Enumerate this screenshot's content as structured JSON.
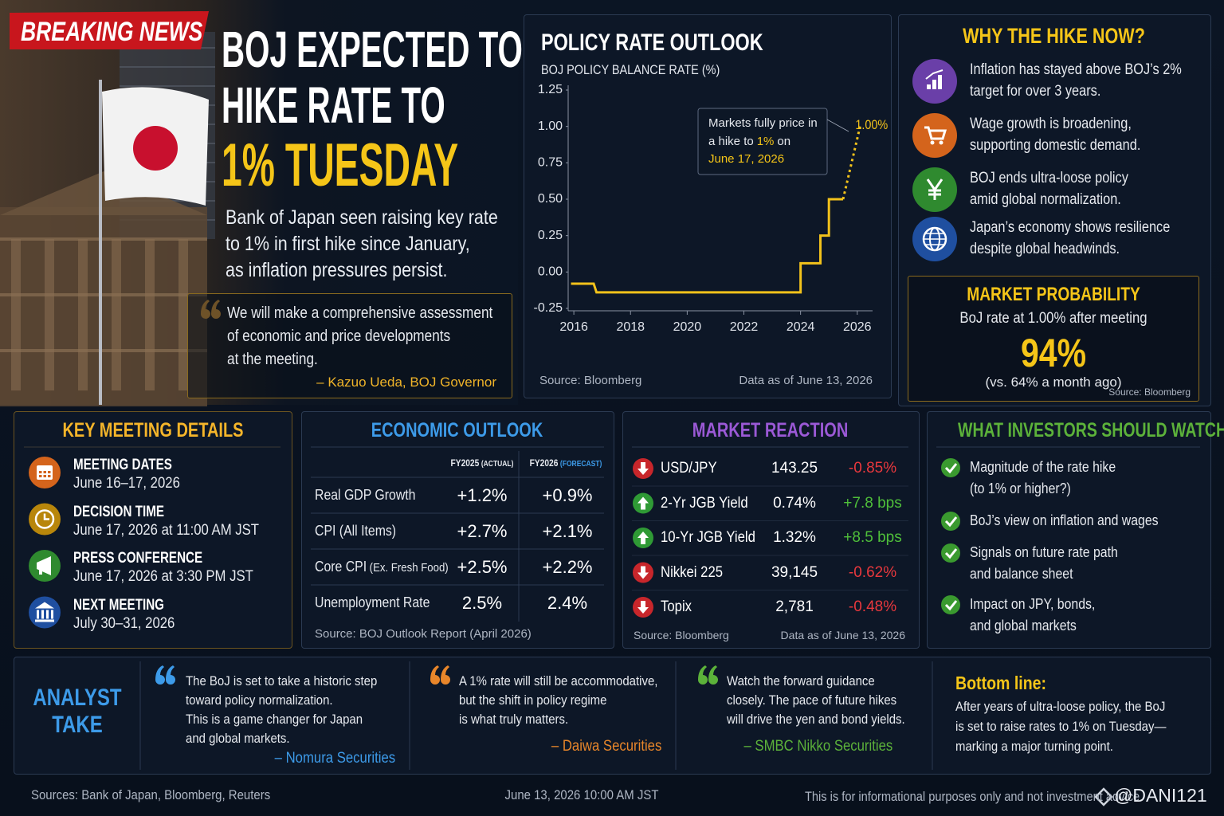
{
  "header": {
    "badge": "BREAKING NEWS",
    "title_lines": [
      "BOJ EXPECTED TO",
      "HIKE RATE TO",
      "1% TUESDAY"
    ],
    "subtitle_lines": [
      "Bank of Japan seen raising key rate",
      "to 1% in first hike since January,",
      "as inflation pressures persist."
    ],
    "quote": {
      "lines": [
        "We will make a comprehensive assessment",
        "of economic and price developments",
        "at the meeting."
      ],
      "attribution": "– Kazuo Ueda, BOJ Governor"
    }
  },
  "chart_data": {
    "type": "line",
    "title": "POLICY RATE OUTLOOK",
    "y_label": "BOJ POLICY BALANCE RATE (%)",
    "xlim": [
      2015.8,
      2026.4
    ],
    "xticks": [
      2016,
      2018,
      2020,
      2022,
      2024,
      2026
    ],
    "ylim": [
      -0.25,
      1.25
    ],
    "yticks": [
      {
        "value": 1.25,
        "label": "1.25"
      },
      {
        "value": 1,
        "label": "1.00"
      },
      {
        "value": 0.75,
        "label": "0.75"
      },
      {
        "value": 0.5,
        "label": "0.50"
      },
      0.25,
      {
        "value": 0,
        "label": "0.00"
      },
      -0.25
    ],
    "grid": false,
    "series": [
      {
        "color": "#f2c21b",
        "line_style": "solid",
        "x": [
          2015.9,
          2016.7,
          2016.8,
          2024.0,
          2024.0,
          2024.7,
          2024.7,
          2025.0,
          2025.0,
          2025.5
        ],
        "values": [
          -0.08,
          -0.08,
          -0.14,
          -0.14,
          0.06,
          0.06,
          0.25,
          0.25,
          0.5,
          0.5
        ]
      },
      {
        "color": "#f2c21b",
        "line_style": "dotted",
        "x": [
          2025.5,
          2026.1
        ],
        "values": [
          0.5,
          1.0
        ],
        "value_labels": [
          null,
          "1.00%"
        ]
      }
    ],
    "annotation": {
      "line1": "Markets fully price in",
      "line2_start": "a hike to",
      "line2_highlight": "1%",
      "line2_end": "on",
      "line3": "June 17, 2026"
    },
    "source": "Source: Bloomberg",
    "as_of": "Data as of June 13, 2026"
  },
  "why": {
    "title": "WHY THE HIKE NOW?",
    "items": [
      [
        "Inflation has stayed above BOJ’s 2%",
        "target for over 3 years."
      ],
      [
        "Wage growth is broadening,",
        "supporting domestic demand."
      ],
      [
        "BOJ ends ultra-loose policy",
        "amid global normalization."
      ],
      [
        "Japan’s economy shows resilience",
        "despite global headwinds."
      ]
    ]
  },
  "probability": {
    "title": "MARKET PROBABILITY",
    "subtitle": "BoJ rate at 1.00% after meeting",
    "value": "94%",
    "note": "(vs. 64% a month ago)",
    "source": "Source: Bloomberg"
  },
  "meeting": {
    "title": "KEY MEETING DETAILS",
    "items": [
      {
        "label": "MEETING DATES",
        "value": "June 16–17, 2026"
      },
      {
        "label": "DECISION TIME",
        "value": "June 17, 2026 at 11:00 AM JST"
      },
      {
        "label": "PRESS CONFERENCE",
        "value": "June 17, 2026 at 3:30 PM JST"
      },
      {
        "label": "NEXT MEETING",
        "value": "July 30–31, 2026"
      }
    ]
  },
  "outlook": {
    "title": "ECONOMIC OUTLOOK",
    "headers": [
      {
        "year": "FY2025",
        "kind": "(ACTUAL)"
      },
      {
        "year": "FY2026",
        "kind": "(FORECAST)"
      }
    ],
    "rows": [
      {
        "label": "Real GDP Growth",
        "values": [
          "+1.2%",
          "+0.9%"
        ]
      },
      {
        "label": "CPI (All Items)",
        "values": [
          "+2.7%",
          "+2.1%"
        ]
      },
      {
        "label": "Core CPI",
        "note": "(Ex. Fresh Food)",
        "values": [
          "+2.5%",
          "+2.2%"
        ]
      },
      {
        "label": "Unemployment Rate",
        "values": [
          "2.5%",
          "2.4%"
        ]
      }
    ],
    "source": "Source: BOJ Outlook Report (April 2026)"
  },
  "reaction": {
    "title": "MARKET REACTION",
    "rows": [
      {
        "name": "USD/JPY",
        "level": "143.25",
        "change": "-0.85%"
      },
      {
        "name": "2-Yr JGB Yield",
        "level": "0.74%",
        "change": "+7.8 bps"
      },
      {
        "name": "10-Yr JGB Yield",
        "level": "1.32%",
        "change": "+8.5 bps"
      },
      {
        "name": "Nikkei 225",
        "level": "39,145",
        "change": "-0.62%"
      },
      {
        "name": "Topix",
        "level": "2,781",
        "change": "-0.48%"
      }
    ],
    "source": "Source: Bloomberg",
    "as_of": "Data as of June 13, 2026"
  },
  "watch": {
    "title": "WHAT INVESTORS SHOULD WATCH",
    "items": [
      [
        "Magnitude of the rate hike",
        "(to 1% or higher?)"
      ],
      [
        "BoJ’s view on inflation and wages"
      ],
      [
        "Signals on future rate path",
        "and balance sheet"
      ],
      [
        "Impact on JPY, bonds,",
        "and global markets"
      ]
    ]
  },
  "analyst": {
    "title_lines": [
      "ANALYST",
      "TAKE"
    ],
    "quotes": [
      {
        "lines": [
          "The BoJ is set to take a historic step",
          "toward policy normalization.",
          "This is a game changer for Japan",
          "and global markets."
        ],
        "source": "– Nomura Securities"
      },
      {
        "lines": [
          "A 1% rate will still be accommodative,",
          "but the shift in policy regime",
          "is what truly matters."
        ],
        "source": "– Daiwa Securities"
      },
      {
        "lines": [
          "Watch the forward guidance",
          "closely. The pace of future hikes",
          "will drive the yen and bond yields."
        ],
        "source": "– SMBC Nikko Securities"
      }
    ],
    "bottom": {
      "title": "Bottom line:",
      "lines": [
        "After years of ultra-loose policy, the BoJ",
        "is set to raise rates to 1% on Tuesday—",
        "marking a major turning point."
      ]
    }
  },
  "footer": {
    "sources": "Sources: Bank of Japan, Bloomberg, Reuters",
    "timestamp": "June 13, 2026 10:00 AM JST",
    "disclaimer": "This is for informational purposes only and not investment advice.",
    "watermark": "@DANI121"
  }
}
